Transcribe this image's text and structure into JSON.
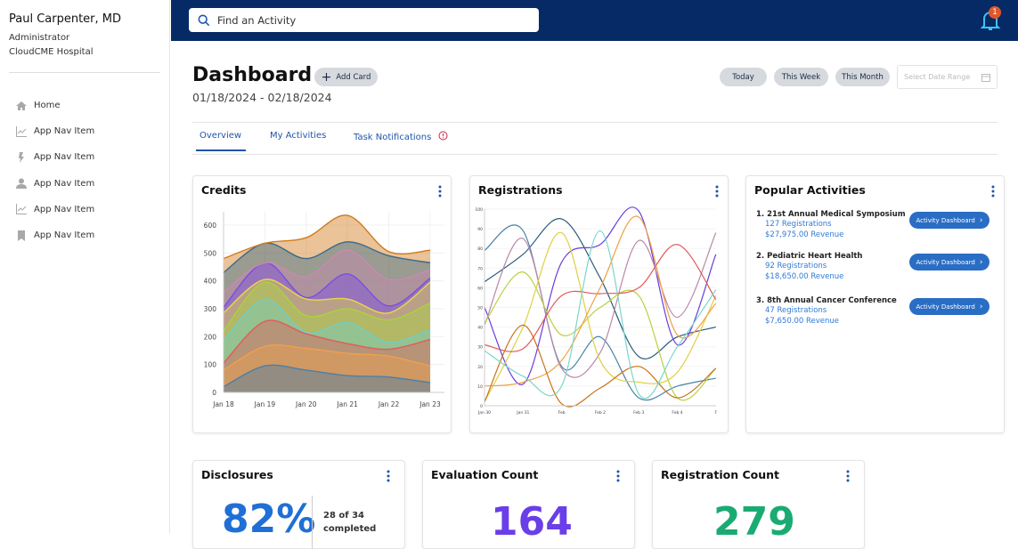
{
  "user": {
    "name": "Paul Carpenter, MD",
    "role": "Administrator",
    "org": "CloudCME Hospital"
  },
  "nav": [
    {
      "label": "Home",
      "icon": "home-icon"
    },
    {
      "label": "App Nav Item",
      "icon": "chart-line-icon"
    },
    {
      "label": "App Nav Item",
      "icon": "bolt-icon"
    },
    {
      "label": "App Nav Item",
      "icon": "user-icon"
    },
    {
      "label": "App Nav Item",
      "icon": "chart-line-icon"
    },
    {
      "label": "App Nav Item",
      "icon": "bookmark-icon"
    }
  ],
  "topbar": {
    "search_placeholder": "Find an Activity",
    "notifications": "1",
    "color": "#062a66"
  },
  "header": {
    "title": "Dashboard",
    "date_range": "01/18/2024 - 02/18/2024",
    "add_card": "Add Card",
    "filters": [
      "Today",
      "This Week",
      "This Month"
    ],
    "date_picker_placeholder": "Select Date Range"
  },
  "tabs": [
    "Overview",
    "My Activities",
    "Task Notifications"
  ],
  "cards": {
    "credits": {
      "title": "Credits"
    },
    "registrations": {
      "title": "Registrations"
    },
    "popular": {
      "title": "Popular Activities",
      "button_label": "Activity Dashboard",
      "items": [
        {
          "name": "1. 21st Annual Medical Symposium",
          "registrations": "127 Registrations",
          "revenue": "$27,975.00 Revenue"
        },
        {
          "name": "2. Pediatric Heart Health",
          "registrations": "92 Registrations",
          "revenue": "$18,650.00 Revenue"
        },
        {
          "name": "3. 8th Annual Cancer Conference",
          "registrations": "47 Registrations",
          "revenue": "$7,650.00 Revenue"
        }
      ]
    },
    "disclosures": {
      "title": "Disclosures",
      "percent": "82%",
      "detail_1": "28 of 34",
      "detail_2": "completed"
    },
    "evaluation": {
      "title": "Evaluation Count",
      "value": "164"
    },
    "registration_count": {
      "title": "Registration Count",
      "value": "279"
    }
  },
  "chart_data": [
    {
      "type": "area",
      "stacked": true,
      "categories": [
        "Jan 18",
        "Jan 19",
        "Jan 20",
        "Jan 21",
        "Jan 22",
        "Jan 23"
      ],
      "ylim": [
        0,
        650
      ],
      "yticks": [
        0,
        100,
        200,
        300,
        400,
        500,
        600
      ],
      "grid": true,
      "colors": [
        "#4a7fa8",
        "#f0a04a",
        "#e35a5a",
        "#6fcfc6",
        "#a8d43c",
        "#e8d84a",
        "#7b4de0",
        "#c88ab0",
        "#3a6a8a",
        "#d07a1a"
      ],
      "series": [
        {
          "values": [
            20,
            95,
            80,
            60,
            55,
            35
          ]
        },
        {
          "values": [
            60,
            70,
            78,
            80,
            75,
            60
          ]
        },
        {
          "values": [
            25,
            90,
            52,
            35,
            25,
            95
          ]
        },
        {
          "values": [
            80,
            80,
            5,
            75,
            25,
            35
          ]
        },
        {
          "values": [
            35,
            60,
            60,
            50,
            80,
            95
          ]
        },
        {
          "values": [
            65,
            10,
            60,
            35,
            25,
            75
          ]
        },
        {
          "values": [
            20,
            60,
            5,
            90,
            25,
            15
          ]
        },
        {
          "values": [
            55,
            0,
            75,
            85,
            95,
            30
          ]
        },
        {
          "values": [
            70,
            70,
            65,
            30,
            85,
            25
          ]
        },
        {
          "values": [
            50,
            0,
            75,
            95,
            15,
            45
          ]
        }
      ]
    },
    {
      "type": "line",
      "categories": [
        "Jan 30",
        "Jan 31",
        "Feb",
        "Feb 2",
        "Feb 3",
        "Feb 4",
        "F"
      ],
      "ylim": [
        0,
        100
      ],
      "yticks": [
        0,
        10,
        20,
        30,
        40,
        50,
        60,
        70,
        80,
        90,
        100
      ],
      "grid": true,
      "series": [
        {
          "color": "#2b5a7a",
          "values": [
            63,
            77,
            95,
            65,
            25,
            35,
            40
          ]
        },
        {
          "color": "#4a85a8",
          "values": [
            79,
            89,
            20,
            35,
            4,
            10,
            14
          ]
        },
        {
          "color": "#6a3ee0",
          "values": [
            50,
            11,
            73,
            82,
            99,
            31,
            77
          ]
        },
        {
          "color": "#b888a8",
          "values": [
            41,
            85,
            19,
            27,
            84,
            45,
            88
          ]
        },
        {
          "color": "#b8d040",
          "values": [
            42,
            68,
            36,
            50,
            56,
            4,
            19
          ]
        },
        {
          "color": "#e0d040",
          "values": [
            2,
            40,
            88,
            23,
            12,
            17,
            56
          ]
        },
        {
          "color": "#e05a5a",
          "values": [
            31,
            29,
            56,
            57,
            60,
            82,
            54
          ]
        },
        {
          "color": "#f0a040",
          "values": [
            10,
            12,
            23,
            60,
            96,
            36,
            52
          ]
        },
        {
          "color": "#c8741a",
          "values": [
            2,
            41,
            1,
            9,
            20,
            4,
            19
          ]
        },
        {
          "color": "#7ad6cc",
          "values": [
            28,
            15,
            10,
            89,
            6,
            30,
            59
          ]
        }
      ]
    }
  ]
}
